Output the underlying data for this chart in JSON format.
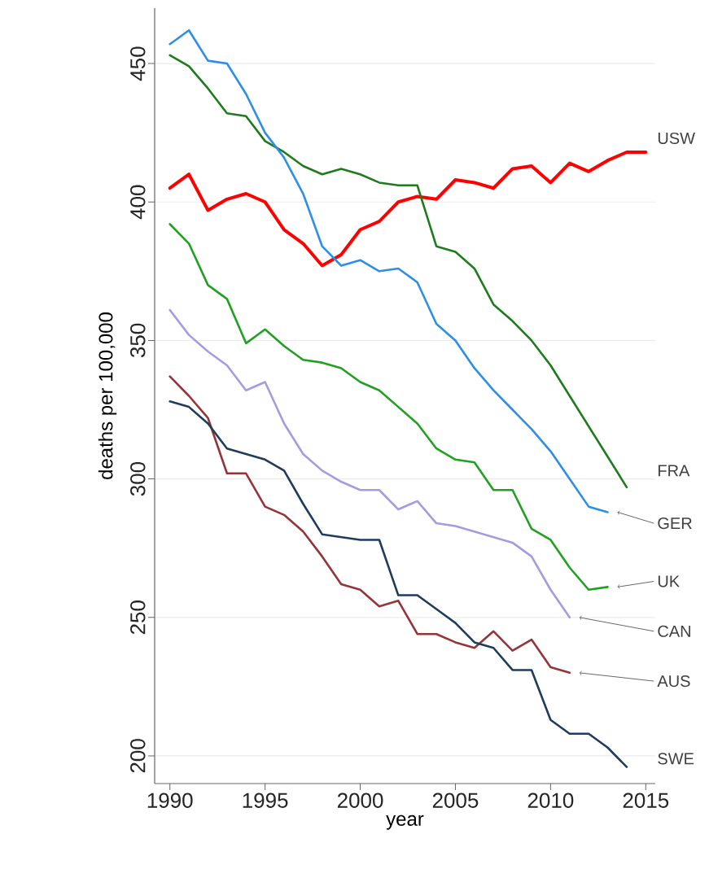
{
  "chart_data": {
    "type": "line",
    "xlabel": "year",
    "ylabel": "deaths per 100,000",
    "xlim": [
      1989.2,
      2015.5
    ],
    "ylim": [
      190,
      470
    ],
    "xticks": [
      1990,
      1995,
      2000,
      2005,
      2010,
      2015
    ],
    "yticks": [
      200,
      250,
      300,
      350,
      400,
      450
    ],
    "grid": "y",
    "marker": "none",
    "line_style": "solid",
    "x": [
      1990,
      1991,
      1992,
      1993,
      1994,
      1995,
      1996,
      1997,
      1998,
      1999,
      2000,
      2001,
      2002,
      2003,
      2004,
      2005,
      2006,
      2007,
      2008,
      2009,
      2010,
      2011,
      2012,
      2013,
      2014,
      2015
    ],
    "series": [
      {
        "name": "USW",
        "color": "#ff0000",
        "values": [
          405,
          410,
          397,
          401,
          403,
          400,
          390,
          385,
          377,
          381,
          390,
          393,
          400,
          402,
          401,
          408,
          407,
          405,
          412,
          413,
          407,
          414,
          411,
          415,
          418,
          418
        ]
      },
      {
        "name": "FRA",
        "color": "#1e7b1e",
        "values": [
          453,
          449,
          441,
          432,
          431,
          422,
          418,
          413,
          410,
          412,
          410,
          407,
          406,
          406,
          384,
          382,
          376,
          363,
          357,
          350,
          341,
          330,
          319,
          308,
          297,
          null
        ]
      },
      {
        "name": "GER",
        "color": "#2e8ee8",
        "values": [
          457,
          462,
          451,
          450,
          439,
          425,
          416,
          403,
          384,
          377,
          379,
          375,
          376,
          371,
          356,
          350,
          340,
          332,
          325,
          318,
          310,
          300,
          290,
          288,
          null,
          null
        ]
      },
      {
        "name": "UK",
        "color": "#22a022",
        "values": [
          392,
          385,
          370,
          365,
          349,
          354,
          348,
          343,
          342,
          340,
          335,
          332,
          326,
          320,
          311,
          307,
          306,
          296,
          296,
          282,
          278,
          268,
          260,
          261,
          null,
          null
        ]
      },
      {
        "name": "CAN",
        "color": "#a79be0",
        "values": [
          361,
          352,
          346,
          341,
          332,
          335,
          320,
          309,
          303,
          299,
          296,
          296,
          289,
          292,
          284,
          283,
          281,
          279,
          277,
          272,
          260,
          250,
          null,
          null,
          null,
          null
        ]
      },
      {
        "name": "AUS",
        "color": "#94353a",
        "values": [
          337,
          330,
          322,
          302,
          302,
          290,
          287,
          281,
          272,
          262,
          260,
          254,
          256,
          244,
          244,
          241,
          239,
          245,
          238,
          242,
          232,
          230,
          null,
          null,
          null,
          null
        ]
      },
      {
        "name": "SWE",
        "color": "#1f3c5e",
        "values": [
          328,
          326,
          320,
          311,
          309,
          307,
          303,
          291,
          280,
          279,
          278,
          278,
          258,
          258,
          253,
          248,
          241,
          239,
          231,
          231,
          213,
          208,
          208,
          203,
          196,
          null
        ]
      }
    ]
  }
}
